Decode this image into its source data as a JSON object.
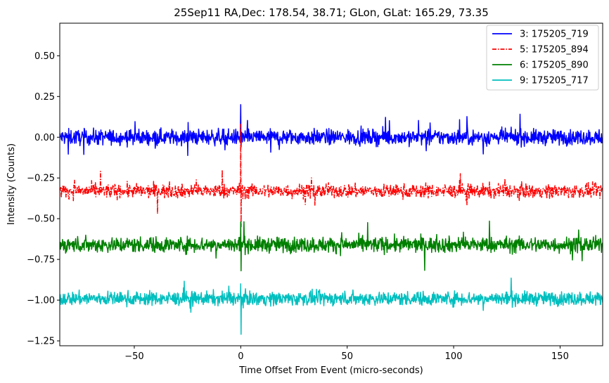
{
  "chart_data": {
    "type": "line",
    "title": "25Sep11 RA,Dec:  178.54,  38.71; GLon, GLat:  165.29,  73.35",
    "xlabel": "Time Offset From Event (micro-seconds)",
    "ylabel": "Intensity (Counts)",
    "xlim": [
      -85,
      170
    ],
    "ylim": [
      -1.28,
      0.7
    ],
    "xticks": [
      -50,
      0,
      50,
      100,
      150
    ],
    "xtick_labels": [
      "−50",
      "0",
      "50",
      "100",
      "150"
    ],
    "yticks": [
      -1.25,
      -1.0,
      -0.75,
      -0.5,
      -0.25,
      0.0,
      0.25,
      0.5
    ],
    "ytick_labels": [
      "−1.25",
      "−1.00",
      "−0.75",
      "−0.50",
      "−0.25",
      "0.00",
      "0.25",
      "0.50"
    ],
    "grid": false,
    "legend_position": "top-right",
    "series": [
      {
        "name": "3: 175205_719",
        "color": "#0000ff",
        "style": "solid",
        "baseline": 0.0,
        "noise_amp": 0.045,
        "spike": 0.2,
        "spike_low": -0.06
      },
      {
        "name": "5: 175205_894",
        "color": "#ff0000",
        "style": "dashdot",
        "baseline": -0.33,
        "noise_amp": 0.04,
        "spike": 0.08,
        "spike_low": -0.55
      },
      {
        "name": "6: 175205_890",
        "color": "#008000",
        "style": "solid",
        "baseline": -0.66,
        "noise_amp": 0.045,
        "spike": -0.52,
        "spike_low": -0.82
      },
      {
        "name": "9: 175205_717",
        "color": "#00bfbf",
        "style": "solid",
        "baseline": -0.99,
        "noise_amp": 0.04,
        "spike": -0.9,
        "spike_low": -1.21
      }
    ]
  }
}
